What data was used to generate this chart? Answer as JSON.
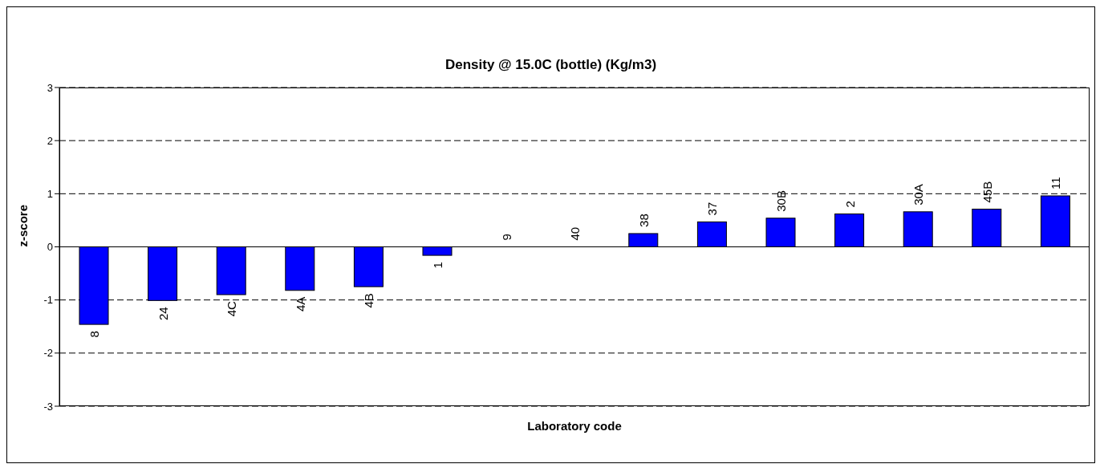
{
  "chart_data": {
    "type": "bar",
    "title": "Density @ 15.0C (bottle) (Kg/m3)",
    "xlabel": "Laboratory code",
    "ylabel": "z-score",
    "categories": [
      "8",
      "24",
      "4C",
      "4A",
      "4B",
      "1",
      "9",
      "40",
      "38",
      "37",
      "30B",
      "2",
      "30A",
      "45B",
      "11"
    ],
    "values": [
      -1.46,
      -1.01,
      -0.9,
      -0.82,
      -0.75,
      -0.16,
      0,
      0,
      0.25,
      0.47,
      0.54,
      0.62,
      0.66,
      0.71,
      0.96
    ],
    "color": "#0000ff",
    "ylim": [
      -3,
      3
    ],
    "yticks": [
      -3,
      -2,
      -1,
      0,
      1,
      2,
      3
    ],
    "grid": "y",
    "legend": false,
    "tick_labels": "y"
  }
}
